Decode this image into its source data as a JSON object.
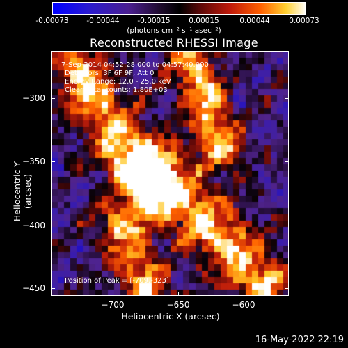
{
  "colorbar": {
    "ticks": [
      "-0.00073",
      "-0.00044",
      "-0.00015",
      "0.00015",
      "0.00044",
      "0.00073"
    ],
    "unit_label": "(photons cm⁻² s⁻¹ asec⁻²)",
    "colormap": [
      "#0000ff",
      "#3a1aa8",
      "#4a1f8f",
      "#000000",
      "#6a0a0a",
      "#c01a0a",
      "#ff5a00",
      "#ffc020",
      "#ffffff"
    ]
  },
  "title": "Reconstructed RHESSI Image",
  "annotations": {
    "time_range": "7-Sep-2014 04:52:28.000 to 04:57:40.000",
    "detectors": "Detectors: 3F 6F 9F, Att 0",
    "energy_range": "Energy Range: 12.0 - 25.0 keV",
    "clean_counts": "Clean    Total counts: 1.80E+03",
    "peak_position": "Position of Peak = [-709,-323]"
  },
  "axes": {
    "xlabel": "Heliocentric X (arcsec)",
    "ylabel": "Heliocentric Y (arcsec)",
    "xticks": [
      "−700",
      "−650",
      "−600"
    ],
    "yticks": [
      "−300",
      "−350",
      "−400",
      "−450"
    ]
  },
  "timestamp": "16-May-2022 22:19"
}
